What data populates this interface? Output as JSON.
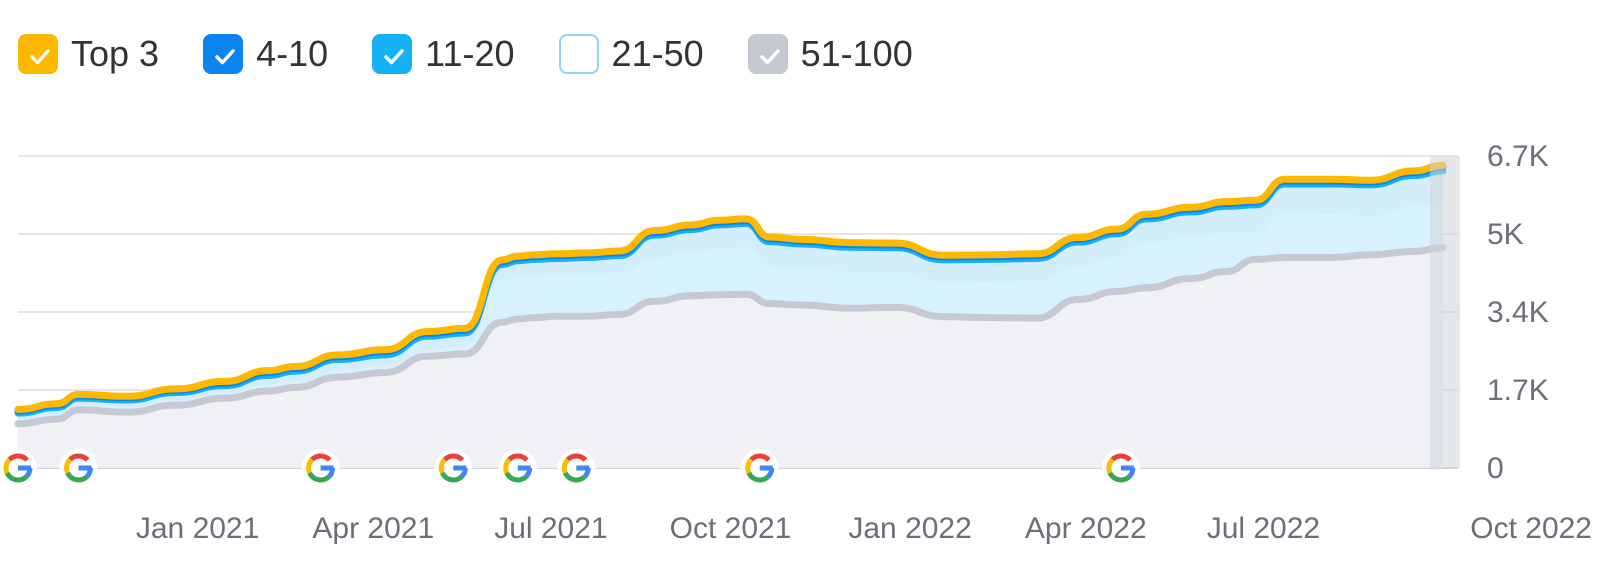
{
  "legend": {
    "items": [
      {
        "label": "Top 3",
        "checked": true,
        "color": "#ffb800",
        "border": "#ffb800",
        "check": "#ffffff"
      },
      {
        "label": "4-10",
        "checked": true,
        "color": "#0a85f0",
        "border": "#0a85f0",
        "check": "#ffffff"
      },
      {
        "label": "11-20",
        "checked": true,
        "color": "#14b1f5",
        "border": "#14b1f5",
        "check": "#ffffff"
      },
      {
        "label": "21-50",
        "checked": false,
        "color": "#ffffff",
        "border": "#8fd4f8",
        "check": "#ffffff"
      },
      {
        "label": "51-100",
        "checked": true,
        "color": "#c6c9d2",
        "border": "#c6c9d2",
        "check": "#ffffff"
      }
    ]
  },
  "chart_data": {
    "type": "area",
    "title": "",
    "xlabel": "",
    "ylabel": "",
    "stacked": true,
    "grid": true,
    "legend_position": "top-left",
    "y_axis_position": "right",
    "ylim": [
      0,
      6700
    ],
    "y_ticks": [
      {
        "value": 0,
        "label": "0"
      },
      {
        "value": 1675,
        "label": "1.7K"
      },
      {
        "value": 3350,
        "label": "3.4K"
      },
      {
        "value": 5025,
        "label": "5K"
      },
      {
        "value": 6700,
        "label": "6.7K"
      }
    ],
    "xlim": [
      "2020-10-01",
      "2022-10-01"
    ],
    "x_ticks": [
      {
        "date": "2021-01-01",
        "label": "Jan 2021"
      },
      {
        "date": "2021-04-01",
        "label": "Apr 2021"
      },
      {
        "date": "2021-07-01",
        "label": "Jul 2021"
      },
      {
        "date": "2021-10-01",
        "label": "Oct 2021"
      },
      {
        "date": "2022-01-01",
        "label": "Jan 2022"
      },
      {
        "date": "2022-04-01",
        "label": "Apr 2022"
      },
      {
        "date": "2022-07-01",
        "label": "Jul 2022"
      },
      {
        "date": "2022-10-01",
        "label": "Oct 2022"
      }
    ],
    "x": [
      "2020-10-01",
      "2020-10-21",
      "2020-11-01",
      "2020-11-26",
      "2020-12-21",
      "2021-01-15",
      "2021-02-06",
      "2021-02-20",
      "2021-03-14",
      "2021-04-07",
      "2021-04-29",
      "2021-05-18",
      "2021-06-06",
      "2021-06-14",
      "2021-06-23",
      "2021-07-04",
      "2021-07-20",
      "2021-08-05",
      "2021-08-23",
      "2021-09-11",
      "2021-09-25",
      "2021-10-09",
      "2021-10-21",
      "2021-11-07",
      "2021-12-01",
      "2021-12-25",
      "2022-01-18",
      "2022-02-11",
      "2022-03-07",
      "2022-03-28",
      "2022-04-17",
      "2022-05-02",
      "2022-05-25",
      "2022-06-12",
      "2022-06-27",
      "2022-07-12",
      "2022-08-05",
      "2022-08-25",
      "2022-09-16",
      "2022-10-01"
    ],
    "series": [
      {
        "name": "51-100",
        "color": "#c6c9d2",
        "fill": "#f0f1f4",
        "values": [
          950,
          1050,
          1250,
          1200,
          1350,
          1500,
          1650,
          1730,
          1950,
          2050,
          2400,
          2450,
          3130,
          3200,
          3230,
          3260,
          3260,
          3300,
          3580,
          3700,
          3720,
          3730,
          3530,
          3500,
          3430,
          3450,
          3250,
          3230,
          3220,
          3620,
          3790,
          3870,
          4070,
          4220,
          4480,
          4520,
          4520,
          4580,
          4650,
          4730
        ]
      },
      {
        "name": "21-50",
        "color": "#c8eafc",
        "fill": "#d8f2fd",
        "values": [
          1050,
          1150,
          1350,
          1300,
          1450,
          1600,
          1780,
          1860,
          2080,
          2180,
          2530,
          2590,
          4020,
          4100,
          4120,
          4150,
          4150,
          4180,
          4480,
          4630,
          4690,
          4740,
          4300,
          4280,
          4210,
          4200,
          3980,
          3990,
          4000,
          4330,
          4520,
          4840,
          4950,
          5050,
          5050,
          5480,
          5450,
          5400,
          5600,
          5700
        ]
      },
      {
        "name": "11-20",
        "color": "#14b1f5",
        "fill": "#d4edfb",
        "values": [
          1180,
          1300,
          1500,
          1460,
          1620,
          1770,
          1990,
          2080,
          2330,
          2430,
          2830,
          2900,
          4370,
          4450,
          4480,
          4500,
          4520,
          4560,
          5000,
          5120,
          5220,
          5250,
          4860,
          4810,
          4740,
          4730,
          4470,
          4480,
          4500,
          4850,
          5030,
          5350,
          5500,
          5620,
          5650,
          6100,
          6100,
          6080,
          6280,
          6380
        ]
      },
      {
        "name": "4-10",
        "color": "#0a85f0",
        "fill": "#c9e6fb",
        "values": [
          1230,
          1350,
          1550,
          1510,
          1670,
          1820,
          2050,
          2140,
          2390,
          2500,
          2890,
          2960,
          4430,
          4510,
          4540,
          4560,
          4580,
          4620,
          5060,
          5180,
          5280,
          5310,
          4920,
          4870,
          4800,
          4790,
          4530,
          4540,
          4560,
          4910,
          5090,
          5410,
          5560,
          5680,
          5710,
          6160,
          6160,
          6140,
          6340,
          6460
        ]
      },
      {
        "name": "Top 3",
        "color": "#ffb800",
        "fill": "#ffe7a8",
        "values": [
          1260,
          1380,
          1580,
          1540,
          1700,
          1860,
          2090,
          2180,
          2430,
          2540,
          2930,
          3000,
          4470,
          4550,
          4580,
          4600,
          4620,
          4660,
          5100,
          5220,
          5320,
          5350,
          4960,
          4910,
          4840,
          4830,
          4570,
          4580,
          4600,
          4950,
          5130,
          5450,
          5600,
          5720,
          5750,
          6200,
          6200,
          6180,
          6380,
          6500
        ]
      }
    ],
    "annotations": {
      "icon": "google-update-icon",
      "dates": [
        "2020-10-01",
        "2020-11-01",
        "2021-03-05",
        "2021-05-12",
        "2021-06-14",
        "2021-07-14",
        "2021-10-16",
        "2022-04-19"
      ]
    }
  }
}
